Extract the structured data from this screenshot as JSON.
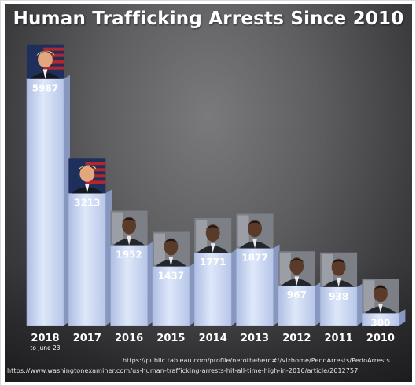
{
  "title": "Human Trafficking Arrests Since 2010",
  "chart_data": {
    "type": "bar",
    "title": "Human Trafficking Arrests Since 2010",
    "categories": [
      "2018",
      "2017",
      "2016",
      "2015",
      "2014",
      "2013",
      "2012",
      "2011",
      "2010"
    ],
    "category_notes": [
      "to June 23",
      "",
      "",
      "",
      "",
      "",
      "",
      "",
      ""
    ],
    "values": [
      5987,
      3213,
      1952,
      1437,
      1771,
      1877,
      967,
      938,
      300
    ],
    "value_labels": [
      "5987",
      "3213",
      "1952",
      "1437",
      "1771",
      "1877",
      "967",
      "938",
      "300"
    ],
    "portraits": [
      "trump-portrait",
      "trump-portrait",
      "obama-portrait",
      "obama-portrait",
      "obama-portrait",
      "obama-portrait",
      "obama-portrait",
      "obama-portrait",
      "obama-portrait"
    ],
    "ylim": [
      0,
      6500
    ],
    "grid": false,
    "legend": "none",
    "bar_color": "#c9d6f2"
  },
  "sources": [
    "https://public.tableau.com/profile/nerothehero#!/vizhome/PedoArrests/PedoArrests",
    "https://www.washingtonexaminer.com/us-human-trafficking-arrests-hit-all-time-high-in-2016/article/2612757"
  ]
}
